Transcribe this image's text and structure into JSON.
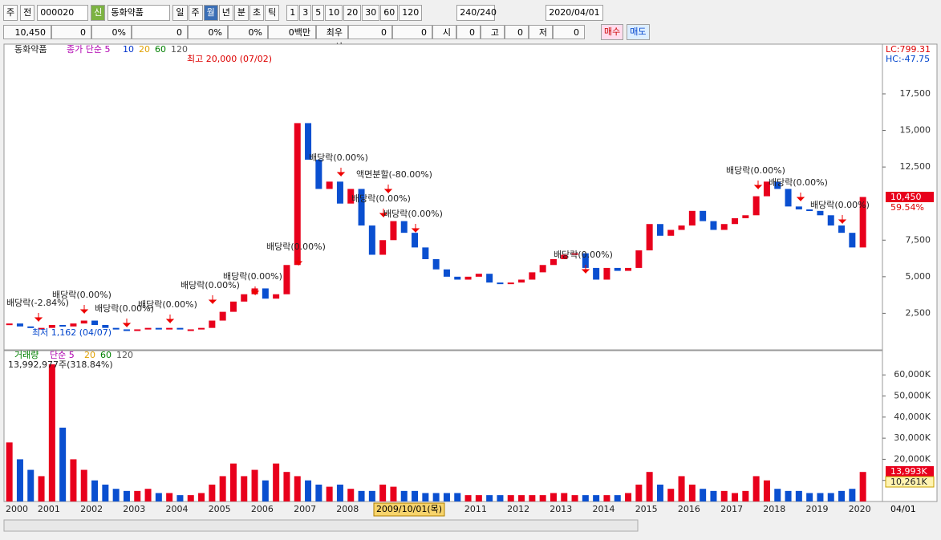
{
  "toolbar": {
    "left": [
      "주",
      "전"
    ],
    "code": "000020",
    "badge": "신",
    "name": "동화약품",
    "periods": [
      "일",
      "주",
      "월",
      "년",
      "분",
      "초",
      "틱"
    ],
    "minutes": [
      "1",
      "3",
      "5",
      "10",
      "20",
      "30",
      "60",
      "120"
    ],
    "count": "240/240",
    "date": "2020/04/01"
  },
  "info": {
    "items": [
      "10,450",
      "0",
      "0%",
      "0",
      "0%",
      "0%",
      "0백만",
      "최우선",
      "0",
      "0",
      "시",
      "0",
      "고",
      "0",
      "저",
      "0"
    ],
    "buy": "매수",
    "sell": "매도"
  },
  "chart_data": {
    "type": "candlestick",
    "legend": {
      "name": "동화약품",
      "ma": "종가 단순 5",
      "periods": [
        "10",
        "20",
        "60",
        "120"
      ]
    },
    "corner": [
      "LC:799.31",
      "HC:-47.75"
    ],
    "last_label": "10,450",
    "last_pct": "59.54%",
    "categories": [
      "2000",
      null,
      null,
      "2001",
      null,
      null,
      null,
      "2002",
      null,
      null,
      null,
      "2003",
      null,
      null,
      null,
      "2004",
      null,
      null,
      null,
      "2005",
      null,
      null,
      null,
      "2006",
      null,
      null,
      null,
      "2007",
      null,
      null,
      null,
      "2008",
      null,
      null,
      null,
      null,
      null,
      null,
      null,
      null,
      null,
      null,
      null,
      "2011",
      null,
      null,
      null,
      "2012",
      null,
      null,
      null,
      "2013",
      null,
      null,
      null,
      "2014",
      null,
      null,
      null,
      "2015",
      null,
      null,
      null,
      "2016",
      null,
      null,
      null,
      "2017",
      null,
      null,
      null,
      "2018",
      null,
      null,
      null,
      "2019",
      null,
      null,
      null,
      "2020",
      null
    ],
    "cursor_label": "2009/10/01(목)",
    "end_label": "04/01",
    "series": [
      {
        "name": "동화약품",
        "up_color": "#e8001c",
        "down_color": "#0a4fd0",
        "values": [
          1800,
          1600,
          1500,
          1500,
          1700,
          1600,
          1800,
          2000,
          1700,
          1500,
          1400,
          1300,
          1400,
          1500,
          1400,
          1500,
          1400,
          1400,
          1500,
          2000,
          2600,
          3300,
          3800,
          4200,
          3500,
          3800,
          5800,
          15500,
          13000,
          11000,
          11500,
          10000,
          11000,
          8500,
          6500,
          7500,
          8800,
          8000,
          7000,
          6200,
          5500,
          5000,
          4800,
          5000,
          5200,
          4600,
          4500,
          4600,
          4800,
          5300,
          5800,
          6200,
          6500,
          6600,
          5600,
          4800,
          5600,
          5400,
          5600,
          6800,
          8600,
          7800,
          8200,
          8500,
          9500,
          8800,
          8200,
          8600,
          9000,
          9200,
          10500,
          11500,
          11000,
          9800,
          9600,
          9500,
          9200,
          8500,
          8000,
          7000,
          10450
        ]
      }
    ],
    "ylim": [
      0,
      20900
    ],
    "yticks": [
      {
        "value": 2500,
        "label": "2,500"
      },
      {
        "value": 5000,
        "label": "5,000"
      },
      {
        "value": 7500,
        "label": "7,500"
      },
      {
        "value": 12500,
        "label": "12,500"
      },
      {
        "value": 15000,
        "label": "15,000"
      },
      {
        "value": 17500,
        "label": "17,500"
      }
    ],
    "annotations": [
      "최고 20,000 (07/02)",
      "최저 1,162 (04/07)",
      "배당락(-2.84%)",
      "배당락(0.00%)",
      "배당락(0.00%)",
      "배당락(0.00%)",
      "배당락(0.00%)",
      "배당락(0.00%)",
      "배당락(0.00%)",
      "배당락(0.00%)",
      "배당락(0.00%)",
      "배당락(0.00%)",
      "배당락(0.00%)",
      "배당락(0.00%)",
      "배당락(0.00%)",
      "배당락(0.00%)",
      "액면분할(-80.00%)"
    ],
    "volume": {
      "legend": {
        "name": "거래량",
        "ma": "단순 5",
        "periods": [
          "20",
          "60",
          "120"
        ]
      },
      "summary": "13,992,977주(318.84%)",
      "values": [
        28000,
        20000,
        15000,
        12000,
        65000,
        35000,
        20000,
        15000,
        10000,
        8000,
        6000,
        5000,
        5000,
        6000,
        4000,
        4000,
        3000,
        3000,
        4000,
        8000,
        12000,
        18000,
        12000,
        15000,
        10000,
        18000,
        14000,
        12000,
        10000,
        8000,
        7000,
        8000,
        6000,
        5000,
        5000,
        8000,
        7000,
        5000,
        5000,
        4000,
        4000,
        4000,
        4000,
        3000,
        3000,
        3000,
        3000,
        3000,
        3000,
        3000,
        3000,
        4000,
        4000,
        3000,
        3000,
        3000,
        3000,
        3000,
        4000,
        8000,
        14000,
        8000,
        6000,
        12000,
        8000,
        6000,
        5000,
        5000,
        4000,
        5000,
        12000,
        10000,
        6000,
        5000,
        5000,
        4000,
        4000,
        4000,
        5000,
        6000,
        13993
      ],
      "last_label": "13,993K",
      "avg_label": "10,261K",
      "ylim": [
        0,
        67700
      ],
      "yticks": [
        {
          "value": 10000,
          "label": "10,000K"
        },
        {
          "value": 20000,
          "label": "20,000K"
        },
        {
          "value": 30000,
          "label": "30,000K"
        },
        {
          "value": 40000,
          "label": "40,000K"
        },
        {
          "value": 50000,
          "label": "50,000K"
        },
        {
          "value": 60000,
          "label": "60,000K"
        }
      ]
    }
  }
}
